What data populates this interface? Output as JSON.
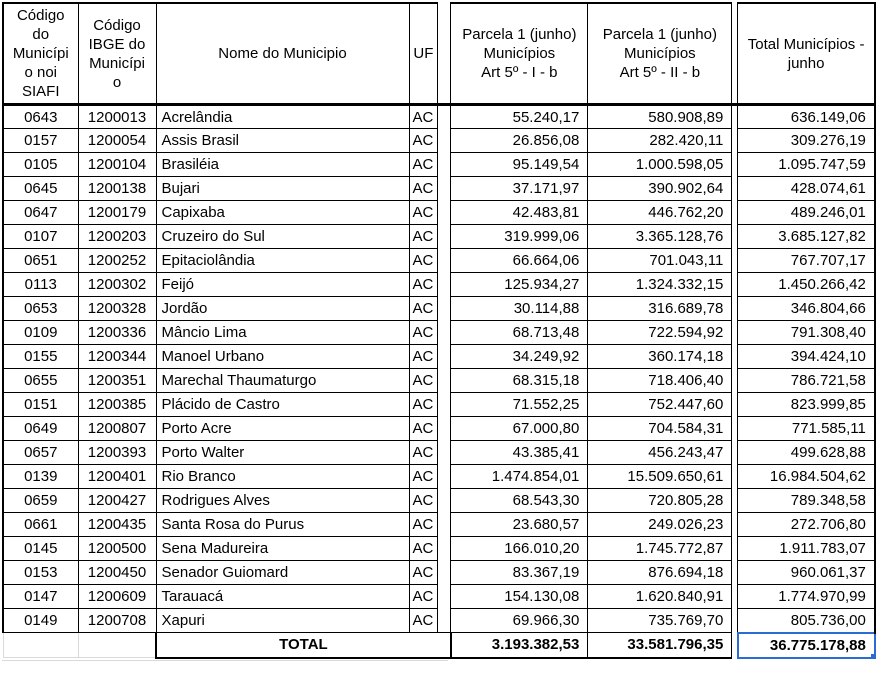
{
  "colors": {
    "selection": "#2b6bd4",
    "grid_black": "#000000",
    "grid_light": "#d9d9d9"
  },
  "table": {
    "headers": {
      "siafi": "Código\ndo\nMunicípi\no noi\nSIAFI",
      "ibge": "Código\nIBGE do\nMunicípi\no",
      "nome": "Nome do Municipio",
      "uf": "UF",
      "parcela1": "Parcela 1 (junho)\nMunicípios\nArt 5º - I - b",
      "parcela2": "Parcela 1 (junho)\nMunicípios\nArt 5º - II - b",
      "total": "Total Municípios -\njunho"
    },
    "rows": [
      [
        "0643",
        "1200013",
        "Acrelândia",
        "AC",
        "55.240,17",
        "580.908,89",
        "636.149,06"
      ],
      [
        "0157",
        "1200054",
        "Assis Brasil",
        "AC",
        "26.856,08",
        "282.420,11",
        "309.276,19"
      ],
      [
        "0105",
        "1200104",
        "Brasiléia",
        "AC",
        "95.149,54",
        "1.000.598,05",
        "1.095.747,59"
      ],
      [
        "0645",
        "1200138",
        "Bujari",
        "AC",
        "37.171,97",
        "390.902,64",
        "428.074,61"
      ],
      [
        "0647",
        "1200179",
        "Capixaba",
        "AC",
        "42.483,81",
        "446.762,20",
        "489.246,01"
      ],
      [
        "0107",
        "1200203",
        "Cruzeiro do Sul",
        "AC",
        "319.999,06",
        "3.365.128,76",
        "3.685.127,82"
      ],
      [
        "0651",
        "1200252",
        "Epitaciolândia",
        "AC",
        "66.664,06",
        "701.043,11",
        "767.707,17"
      ],
      [
        "0113",
        "1200302",
        "Feijó",
        "AC",
        "125.934,27",
        "1.324.332,15",
        "1.450.266,42"
      ],
      [
        "0653",
        "1200328",
        "Jordão",
        "AC",
        "30.114,88",
        "316.689,78",
        "346.804,66"
      ],
      [
        "0109",
        "1200336",
        "Mâncio Lima",
        "AC",
        "68.713,48",
        "722.594,92",
        "791.308,40"
      ],
      [
        "0155",
        "1200344",
        "Manoel Urbano",
        "AC",
        "34.249,92",
        "360.174,18",
        "394.424,10"
      ],
      [
        "0655",
        "1200351",
        "Marechal Thaumaturgo",
        "AC",
        "68.315,18",
        "718.406,40",
        "786.721,58"
      ],
      [
        "0151",
        "1200385",
        "Plácido de Castro",
        "AC",
        "71.552,25",
        "752.447,60",
        "823.999,85"
      ],
      [
        "0649",
        "1200807",
        "Porto Acre",
        "AC",
        "67.000,80",
        "704.584,31",
        "771.585,11"
      ],
      [
        "0657",
        "1200393",
        "Porto Walter",
        "AC",
        "43.385,41",
        "456.243,47",
        "499.628,88"
      ],
      [
        "0139",
        "1200401",
        "Rio Branco",
        "AC",
        "1.474.854,01",
        "15.509.650,61",
        "16.984.504,62"
      ],
      [
        "0659",
        "1200427",
        "Rodrigues Alves",
        "AC",
        "68.543,30",
        "720.805,28",
        "789.348,58"
      ],
      [
        "0661",
        "1200435",
        "Santa Rosa do Purus",
        "AC",
        "23.680,57",
        "249.026,23",
        "272.706,80"
      ],
      [
        "0145",
        "1200500",
        "Sena Madureira",
        "AC",
        "166.010,20",
        "1.745.772,87",
        "1.911.783,07"
      ],
      [
        "0153",
        "1200450",
        "Senador Guiomard",
        "AC",
        "83.367,19",
        "876.694,18",
        "960.061,37"
      ],
      [
        "0147",
        "1200609",
        "Tarauacá",
        "AC",
        "154.130,08",
        "1.620.840,91",
        "1.774.970,99"
      ],
      [
        "0149",
        "1200708",
        "Xapuri",
        "AC",
        "69.966,30",
        "735.769,70",
        "805.736,00"
      ]
    ],
    "total_row": {
      "label": "TOTAL",
      "parcela1": "3.193.382,53",
      "parcela2": "33.581.796,35",
      "total": "36.775.178,88"
    }
  }
}
